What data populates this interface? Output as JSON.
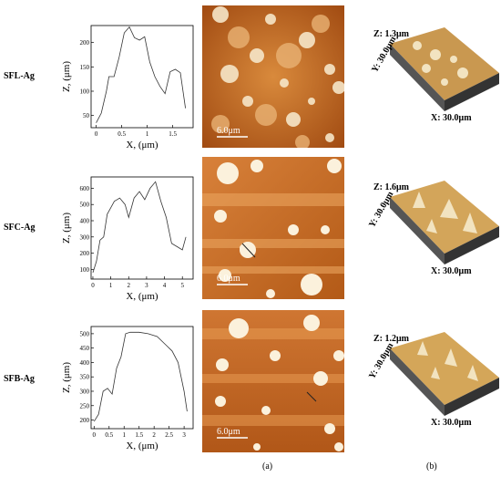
{
  "rows": [
    {
      "label": "SFL-Ag",
      "scale_bar": "6.0μm",
      "topo_z": "Z: 1.3μm",
      "topo_y": "Y: 30.0μm",
      "topo_x": "X: 30.0μm",
      "chart_index": 0
    },
    {
      "label": "SFC-Ag",
      "scale_bar": "6.0μm",
      "topo_z": "Z: 1.6μm",
      "topo_y": "Y: 30.0μm",
      "topo_x": "X: 30.0μm",
      "chart_index": 1
    },
    {
      "label": "SFB-Ag",
      "scale_bar": "6.0μm",
      "topo_z": "Z: 1.2μm",
      "topo_y": "Y: 30.0μm",
      "topo_x": "X: 30.0μm",
      "chart_index": 2
    }
  ],
  "captions": {
    "a": "(a)",
    "b": "(b)"
  },
  "chart_data": [
    {
      "type": "line",
      "xlabel": "X, (μm)",
      "ylabel": "Z, (μm)",
      "xlim": [
        -0.1,
        1.9
      ],
      "ylim": [
        25,
        235
      ],
      "xticks": [
        0,
        0.5,
        1,
        1.5
      ],
      "xtick_labels": [
        "0",
        "0.5",
        "1",
        "1.5"
      ],
      "yticks": [
        50,
        100,
        150,
        200
      ],
      "ytick_labels": [
        "50",
        "100",
        "150",
        "200"
      ],
      "x": [
        0,
        0.1,
        0.2,
        0.25,
        0.35,
        0.45,
        0.55,
        0.65,
        0.75,
        0.85,
        0.95,
        1.05,
        1.15,
        1.25,
        1.35,
        1.45,
        1.55,
        1.65,
        1.75
      ],
      "y": [
        35,
        55,
        100,
        130,
        130,
        170,
        220,
        232,
        210,
        205,
        212,
        160,
        130,
        110,
        95,
        140,
        145,
        138,
        65
      ]
    },
    {
      "type": "line",
      "xlabel": "X, (μm)",
      "ylabel": "Z, (μm)",
      "xlim": [
        -0.1,
        5.6
      ],
      "ylim": [
        40,
        670
      ],
      "xticks": [
        0,
        1,
        2,
        3,
        4,
        5
      ],
      "xtick_labels": [
        "0",
        "1",
        "2",
        "3",
        "4",
        "5"
      ],
      "yticks": [
        100,
        200,
        300,
        400,
        500,
        600
      ],
      "ytick_labels": [
        "100",
        "200",
        "300",
        "400",
        "500",
        "600"
      ],
      "x": [
        0,
        0.2,
        0.4,
        0.6,
        0.8,
        1.0,
        1.2,
        1.5,
        1.8,
        2.0,
        2.3,
        2.6,
        2.9,
        3.2,
        3.5,
        3.8,
        4.1,
        4.4,
        4.7,
        5.0,
        5.2
      ],
      "y": [
        80,
        150,
        280,
        300,
        440,
        480,
        520,
        540,
        500,
        420,
        540,
        580,
        530,
        600,
        640,
        520,
        420,
        260,
        240,
        220,
        300
      ]
    },
    {
      "type": "line",
      "xlabel": "X, (μm)",
      "ylabel": "Z, (μm)",
      "xlim": [
        -0.1,
        3.3
      ],
      "ylim": [
        170,
        525
      ],
      "xticks": [
        0,
        0.5,
        1,
        1.5,
        2,
        2.5,
        3
      ],
      "xtick_labels": [
        "0",
        "0.5",
        "1",
        "1.5",
        "2",
        "2.5",
        "3"
      ],
      "yticks": [
        200,
        250,
        300,
        350,
        400,
        450,
        500
      ],
      "ytick_labels": [
        "200",
        "250",
        "300",
        "350",
        "400",
        "450",
        "500"
      ],
      "x": [
        0,
        0.15,
        0.3,
        0.45,
        0.6,
        0.75,
        0.9,
        1.05,
        1.2,
        1.35,
        1.5,
        1.8,
        2.1,
        2.4,
        2.6,
        2.8,
        3.0,
        3.1
      ],
      "y": [
        195,
        220,
        300,
        310,
        290,
        380,
        420,
        500,
        505,
        505,
        505,
        500,
        490,
        460,
        440,
        400,
        300,
        230
      ]
    }
  ]
}
